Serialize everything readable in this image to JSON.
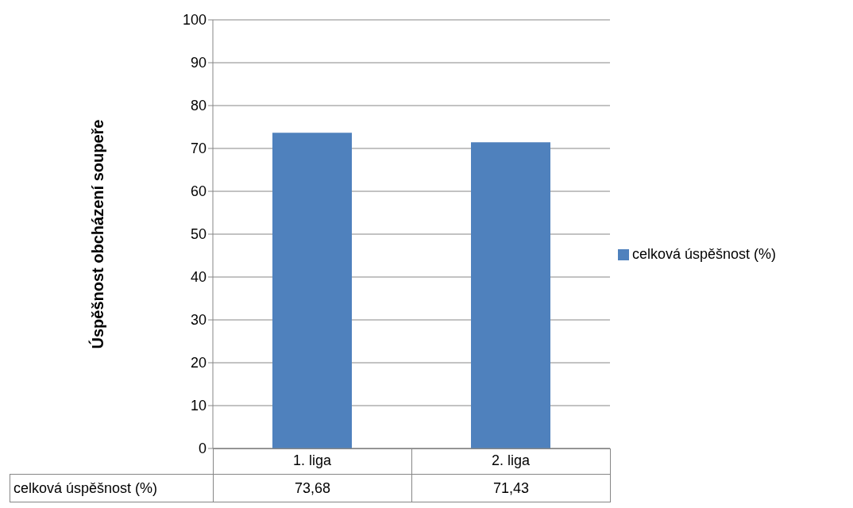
{
  "chart_data": {
    "type": "bar",
    "ylabel": "Úspěšnost obcházení soupeře",
    "categories": [
      "1. liga",
      "2. liga"
    ],
    "series": [
      {
        "name": "celková úspěšnost (%)",
        "color": "#4f81bd",
        "values": [
          73.68,
          71.43
        ],
        "value_labels": [
          "73,68",
          "71,43"
        ]
      }
    ],
    "ylim": [
      0,
      100
    ],
    "yticks": [
      0,
      10,
      20,
      30,
      40,
      50,
      60,
      70,
      80,
      90,
      100
    ],
    "grid": "y",
    "legend": "right"
  }
}
